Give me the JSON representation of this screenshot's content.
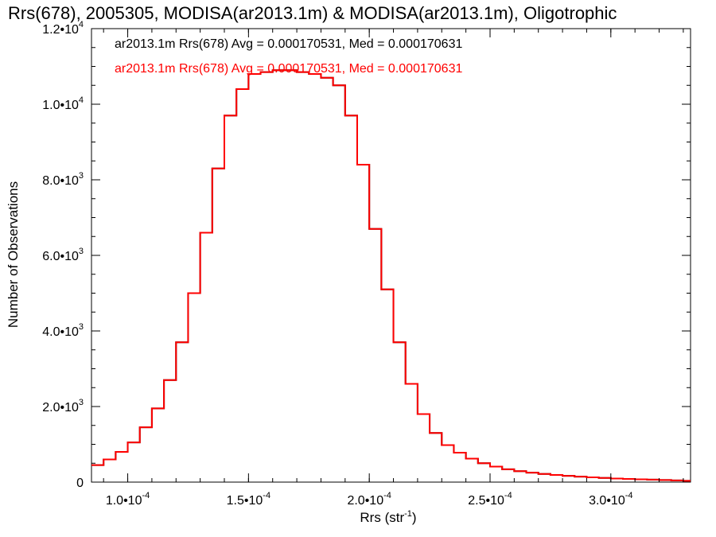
{
  "chart_data": {
    "type": "line",
    "title": "Rrs(678), 2005305, MODISA(ar2013.1m) & MODISA(ar2013.1m), Oligotrophic",
    "xlabel": "Rrs (str",
    "xlabel_sup": "-1",
    "xlabel_close": ")",
    "ylabel": "Number of Observations",
    "xlim": [
      8.5e-05,
      0.000333
    ],
    "ylim": [
      0,
      12000
    ],
    "x_ticks": [
      {
        "value": 0.0001,
        "label": "1.0•10",
        "sup": "-4"
      },
      {
        "value": 0.00015,
        "label": "1.5•10",
        "sup": "-4"
      },
      {
        "value": 0.0002,
        "label": "2.0•10",
        "sup": "-4"
      },
      {
        "value": 0.00025,
        "label": "2.5•10",
        "sup": "-4"
      },
      {
        "value": 0.0003,
        "label": "3.0•10",
        "sup": "-4"
      }
    ],
    "y_ticks": [
      {
        "value": 0,
        "label": "0",
        "sup": ""
      },
      {
        "value": 2000,
        "label": "2.0•10",
        "sup": "3"
      },
      {
        "value": 4000,
        "label": "4.0•10",
        "sup": "3"
      },
      {
        "value": 6000,
        "label": "6.0•10",
        "sup": "3"
      },
      {
        "value": 8000,
        "label": "8.0•10",
        "sup": "3"
      },
      {
        "value": 10000,
        "label": "1.0•10",
        "sup": "4"
      },
      {
        "value": 12000,
        "label": "1.2•10",
        "sup": "4"
      }
    ],
    "legend_placement": "top-left",
    "series": [
      {
        "name": "ar2013.1m Rrs(678) Avg = 0.000170531, Med = 0.000170631",
        "color": "#000000",
        "x": [
          8.5e-05,
          9e-05,
          9.5e-05,
          0.0001,
          0.000105,
          0.00011,
          0.000115,
          0.00012,
          0.000125,
          0.00013,
          0.000135,
          0.00014,
          0.000145,
          0.00015,
          0.000155,
          0.00016,
          0.000165,
          0.00017,
          0.000175,
          0.00018,
          0.000185,
          0.00019,
          0.000195,
          0.0002,
          0.000205,
          0.00021,
          0.000215,
          0.00022,
          0.000225,
          0.00023,
          0.000235,
          0.00024,
          0.000245,
          0.00025,
          0.000255,
          0.00026,
          0.000265,
          0.00027,
          0.000275,
          0.00028,
          0.000285,
          0.00029,
          0.000295,
          0.0003,
          0.000305,
          0.00031,
          0.000315,
          0.00032,
          0.000325,
          0.00033
        ],
        "y": [
          450,
          600,
          800,
          1050,
          1450,
          1950,
          2700,
          3700,
          5000,
          6600,
          8300,
          9700,
          10400,
          10800,
          10850,
          10900,
          10900,
          10850,
          10800,
          10700,
          10500,
          9700,
          8400,
          6700,
          5100,
          3700,
          2600,
          1800,
          1300,
          980,
          780,
          620,
          500,
          410,
          340,
          290,
          250,
          215,
          190,
          165,
          145,
          125,
          110,
          95,
          85,
          75,
          65,
          55,
          45,
          35
        ]
      },
      {
        "name": "ar2013.1m Rrs(678) Avg = 0.000170531, Med = 0.000170631",
        "color": "#ff0000",
        "x": [
          8.5e-05,
          9e-05,
          9.5e-05,
          0.0001,
          0.000105,
          0.00011,
          0.000115,
          0.00012,
          0.000125,
          0.00013,
          0.000135,
          0.00014,
          0.000145,
          0.00015,
          0.000155,
          0.00016,
          0.000165,
          0.00017,
          0.000175,
          0.00018,
          0.000185,
          0.00019,
          0.000195,
          0.0002,
          0.000205,
          0.00021,
          0.000215,
          0.00022,
          0.000225,
          0.00023,
          0.000235,
          0.00024,
          0.000245,
          0.00025,
          0.000255,
          0.00026,
          0.000265,
          0.00027,
          0.000275,
          0.00028,
          0.000285,
          0.00029,
          0.000295,
          0.0003,
          0.000305,
          0.00031,
          0.000315,
          0.00032,
          0.000325,
          0.00033
        ],
        "y": [
          450,
          600,
          800,
          1050,
          1450,
          1950,
          2700,
          3700,
          5000,
          6600,
          8300,
          9700,
          10400,
          10800,
          10850,
          10900,
          10900,
          10850,
          10800,
          10700,
          10500,
          9700,
          8400,
          6700,
          5100,
          3700,
          2600,
          1800,
          1300,
          980,
          780,
          620,
          500,
          410,
          340,
          290,
          250,
          215,
          190,
          165,
          145,
          125,
          110,
          95,
          85,
          75,
          65,
          55,
          45,
          35
        ]
      }
    ]
  }
}
